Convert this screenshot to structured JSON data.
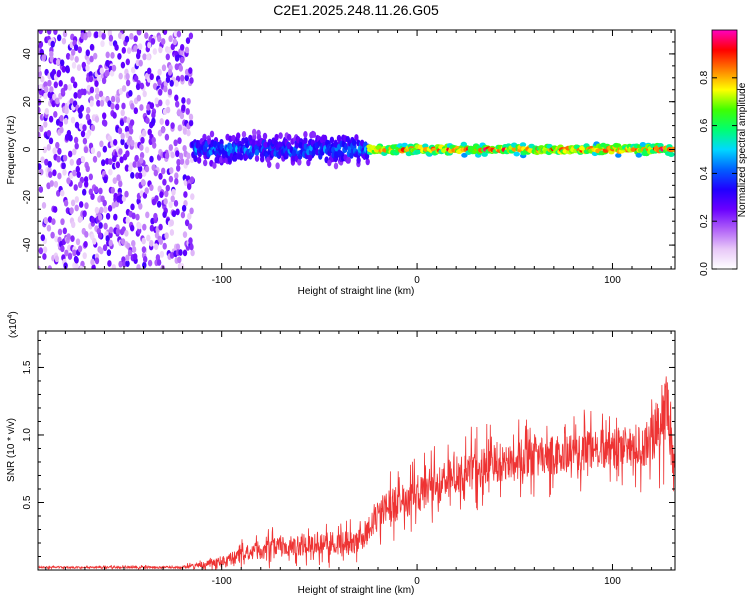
{
  "title": "C2E1.2025.248.11.26.G05",
  "chart_data": [
    {
      "type": "heatmap",
      "xlabel": "Height of straight line (km)",
      "ylabel": "Frequency (Hz)",
      "xlim": [
        -194,
        132
      ],
      "ylim": [
        -50,
        50
      ],
      "xticks": [
        -100,
        0,
        100
      ],
      "xtick_labels": [
        "-100",
        "0",
        "100"
      ],
      "yticks": [
        -40,
        -20,
        0,
        20,
        40
      ],
      "ytick_labels": [
        "-40",
        "-20",
        "0",
        "20",
        "40"
      ],
      "colorbar": {
        "label": "Normalized spectral amplitude",
        "range": [
          0,
          1
        ],
        "ticks": [
          0.0,
          0.2,
          0.4,
          0.6,
          0.8
        ],
        "tick_labels": [
          "0.0",
          "0.2",
          "0.4",
          "0.6",
          "0.8"
        ],
        "colors": [
          "#ffffff",
          "#e8c8f8",
          "#b060f8",
          "#6a00ff",
          "#2000ff",
          "#0060ff",
          "#00d8ff",
          "#00ff70",
          "#40ff00",
          "#ffff00",
          "#ff8000",
          "#ff0000",
          "#ff00c0"
        ]
      },
      "regions": [
        {
          "x_range": [
            -194,
            -115
          ],
          "description_of_signal": "broadband scatter",
          "freq_half_width_hz": 50,
          "amplitude": [
            0.05,
            0.3
          ]
        },
        {
          "x_range": [
            -115,
            -25
          ],
          "freq_half_width_hz": 8,
          "amplitude": [
            0.15,
            0.5
          ]
        },
        {
          "x_range": [
            -25,
            132
          ],
          "freq_half_width_hz": 3,
          "amplitude": [
            0.4,
            0.98
          ]
        }
      ]
    },
    {
      "type": "line",
      "xlabel": "Height of straight line (km)",
      "ylabel": "SNR (10 * v/v)",
      "y_scale_label": "(x10",
      "y_scale_exponent": "4",
      "xlim": [
        -194,
        132
      ],
      "ylim": [
        0,
        1.77
      ],
      "xticks": [
        -100,
        0,
        100
      ],
      "xtick_labels": [
        "-100",
        "0",
        "100"
      ],
      "yticks": [
        0.5,
        1.0,
        1.5
      ],
      "ytick_labels": [
        "0.5",
        "1.0",
        "1.5"
      ],
      "color": "#ee3333",
      "series": [
        {
          "name": "SNR",
          "envelope": [
            {
              "x": -194,
              "mean": 0.02,
              "spread": 0.01
            },
            {
              "x": -120,
              "mean": 0.02,
              "spread": 0.015
            },
            {
              "x": -110,
              "mean": 0.04,
              "spread": 0.04
            },
            {
              "x": -100,
              "mean": 0.07,
              "spread": 0.06
            },
            {
              "x": -80,
              "mean": 0.15,
              "spread": 0.12
            },
            {
              "x": -50,
              "mean": 0.2,
              "spread": 0.14
            },
            {
              "x": -30,
              "mean": 0.2,
              "spread": 0.15
            },
            {
              "x": -18,
              "mean": 0.45,
              "spread": 0.2
            },
            {
              "x": 0,
              "mean": 0.55,
              "spread": 0.22
            },
            {
              "x": 20,
              "mean": 0.7,
              "spread": 0.25
            },
            {
              "x": 40,
              "mean": 0.8,
              "spread": 0.25
            },
            {
              "x": 70,
              "mean": 0.85,
              "spread": 0.25
            },
            {
              "x": 100,
              "mean": 0.9,
              "spread": 0.25
            },
            {
              "x": 120,
              "mean": 0.95,
              "spread": 0.3
            },
            {
              "x": 128,
              "mean": 1.2,
              "spread": 0.5
            },
            {
              "x": 132,
              "mean": 0.8,
              "spread": 0.3
            }
          ]
        }
      ]
    }
  ]
}
